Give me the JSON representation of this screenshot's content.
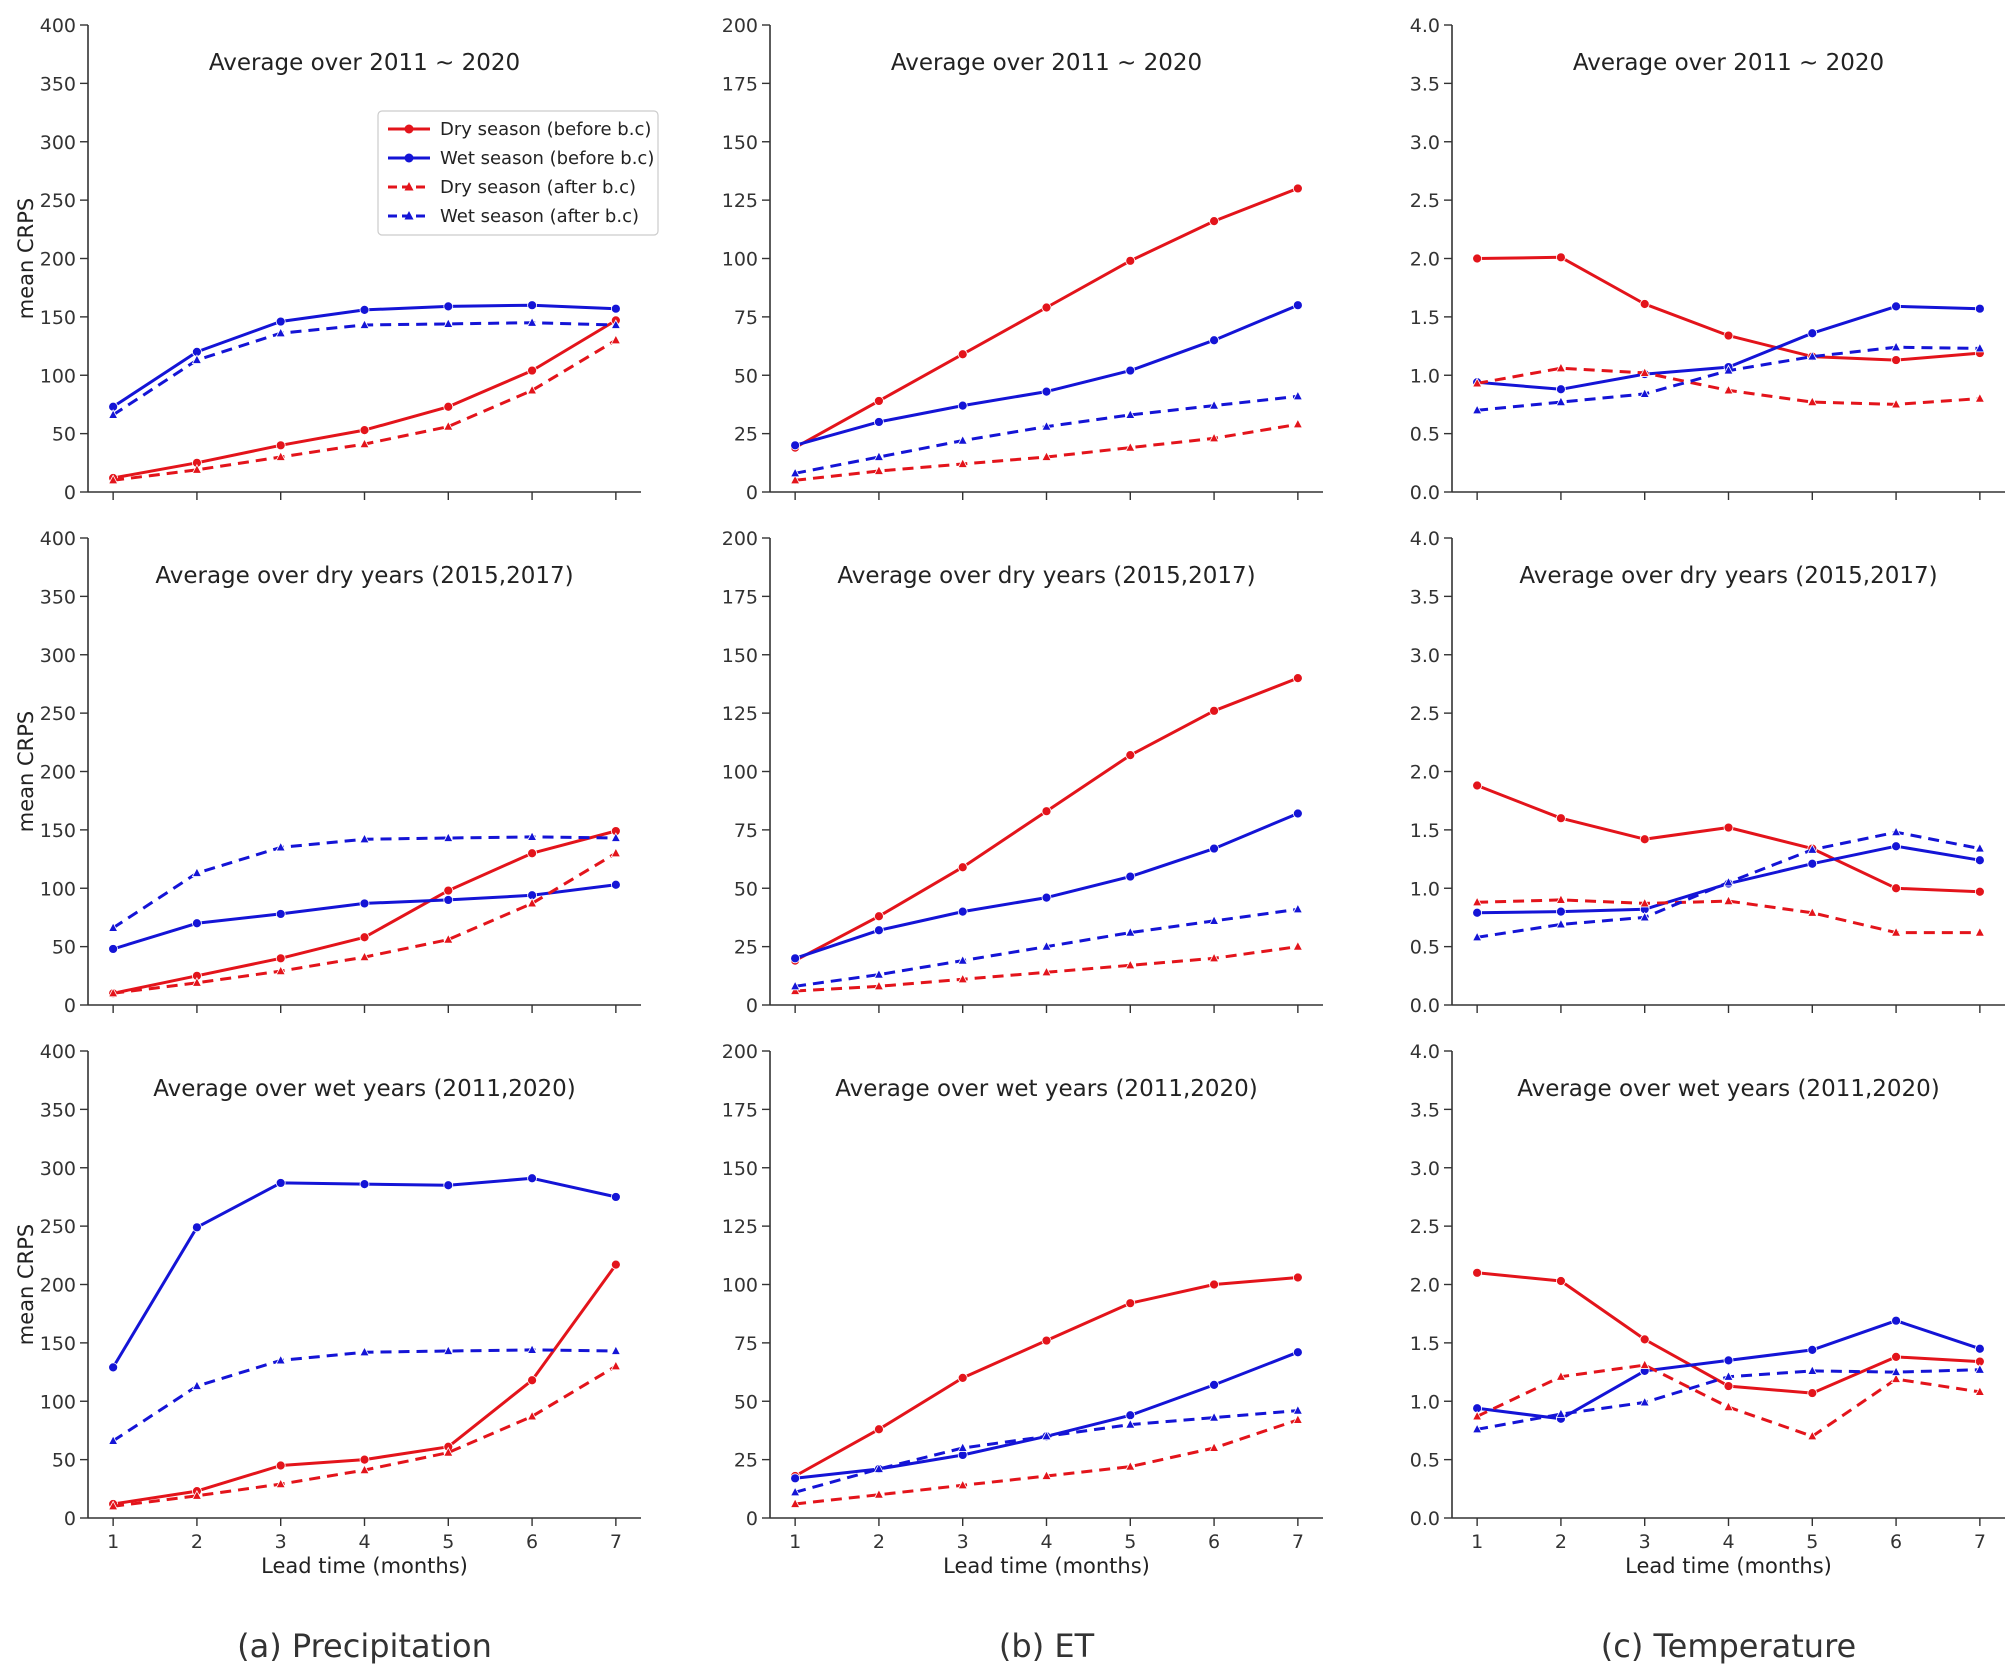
{
  "chart_data": [
    {
      "type": "line",
      "position": "row1-col1",
      "title": "Average over 2011 ~ 2020",
      "ylabel": "mean CRPS",
      "xlabel": "",
      "ylim": [
        0,
        400
      ],
      "yticks": [
        0,
        50,
        100,
        150,
        200,
        250,
        300,
        350,
        400
      ],
      "x": [
        1,
        2,
        3,
        4,
        5,
        6,
        7
      ],
      "series": [
        {
          "name": "Dry season (before b.c)",
          "values": [
            12,
            25,
            40,
            53,
            73,
            104,
            147
          ]
        },
        {
          "name": "Wet season (before b.c)",
          "values": [
            73,
            120,
            146,
            156,
            159,
            160,
            157
          ]
        },
        {
          "name": "Dry season (after b.c)",
          "values": [
            10,
            19,
            30,
            41,
            56,
            87,
            130
          ]
        },
        {
          "name": "Wet season (after b.c)",
          "values": [
            66,
            113,
            136,
            143,
            144,
            145,
            143
          ]
        }
      ],
      "legend": {
        "placement": "upper-right",
        "entries": [
          "Dry season (before b.c)",
          "Wet season (before b.c)",
          "Dry season (after b.c)",
          "Wet season (after b.c)"
        ]
      }
    },
    {
      "type": "line",
      "position": "row1-col2",
      "title": "Average over 2011 ~ 2020",
      "ylabel": "",
      "xlabel": "",
      "ylim": [
        0,
        200
      ],
      "yticks": [
        0,
        25,
        50,
        75,
        100,
        125,
        150,
        175,
        200
      ],
      "x": [
        1,
        2,
        3,
        4,
        5,
        6,
        7
      ],
      "series": [
        {
          "values": [
            19,
            39,
            59,
            79,
            99,
            116,
            130
          ]
        },
        {
          "values": [
            20,
            30,
            37,
            43,
            52,
            65,
            80
          ]
        },
        {
          "values": [
            5,
            9,
            12,
            15,
            19,
            23,
            29
          ]
        },
        {
          "values": [
            8,
            15,
            22,
            28,
            33,
            37,
            41
          ]
        }
      ]
    },
    {
      "type": "line",
      "position": "row1-col3",
      "title": "Average over 2011 ~ 2020",
      "ylabel": "",
      "xlabel": "",
      "ylim": [
        0,
        4
      ],
      "yticks": [
        "0.0",
        "0.5",
        "1.0",
        "1.5",
        "2.0",
        "2.5",
        "3.0",
        "3.5",
        "4.0"
      ],
      "x": [
        1,
        2,
        3,
        4,
        5,
        6,
        7
      ],
      "series": [
        {
          "values": [
            2.0,
            2.01,
            1.61,
            1.34,
            1.16,
            1.13,
            1.19
          ]
        },
        {
          "values": [
            0.94,
            0.88,
            1.01,
            1.07,
            1.36,
            1.59,
            1.57
          ]
        },
        {
          "values": [
            0.93,
            1.06,
            1.02,
            0.87,
            0.77,
            0.75,
            0.8
          ]
        },
        {
          "values": [
            0.7,
            0.77,
            0.84,
            1.04,
            1.16,
            1.24,
            1.23
          ]
        }
      ]
    },
    {
      "type": "line",
      "position": "row2-col1",
      "title": "Average over dry years (2015,2017)",
      "ylabel": "mean CRPS",
      "xlabel": "",
      "ylim": [
        0,
        400
      ],
      "yticks": [
        0,
        50,
        100,
        150,
        200,
        250,
        300,
        350,
        400
      ],
      "x": [
        1,
        2,
        3,
        4,
        5,
        6,
        7
      ],
      "series": [
        {
          "values": [
            10,
            25,
            40,
            58,
            98,
            130,
            149
          ]
        },
        {
          "values": [
            48,
            70,
            78,
            87,
            90,
            94,
            103
          ]
        },
        {
          "values": [
            10,
            19,
            29,
            41,
            56,
            87,
            130
          ]
        },
        {
          "values": [
            66,
            113,
            135,
            142,
            143,
            144,
            143
          ]
        }
      ]
    },
    {
      "type": "line",
      "position": "row2-col2",
      "title": "Average over dry years (2015,2017)",
      "ylabel": "",
      "xlabel": "",
      "ylim": [
        0,
        200
      ],
      "yticks": [
        0,
        25,
        50,
        75,
        100,
        125,
        150,
        175,
        200
      ],
      "x": [
        1,
        2,
        3,
        4,
        5,
        6,
        7
      ],
      "series": [
        {
          "values": [
            19,
            38,
            59,
            83,
            107,
            126,
            140
          ]
        },
        {
          "values": [
            20,
            32,
            40,
            46,
            55,
            67,
            82
          ]
        },
        {
          "values": [
            6,
            8,
            11,
            14,
            17,
            20,
            25
          ]
        },
        {
          "values": [
            8,
            13,
            19,
            25,
            31,
            36,
            41
          ]
        }
      ]
    },
    {
      "type": "line",
      "position": "row2-col3",
      "title": "Average over dry years (2015,2017)",
      "ylabel": "",
      "xlabel": "",
      "ylim": [
        0,
        4
      ],
      "yticks": [
        "0.0",
        "0.5",
        "1.0",
        "1.5",
        "2.0",
        "2.5",
        "3.0",
        "3.5",
        "4.0"
      ],
      "x": [
        1,
        2,
        3,
        4,
        5,
        6,
        7
      ],
      "series": [
        {
          "values": [
            1.88,
            1.6,
            1.42,
            1.52,
            1.34,
            1.0,
            0.97
          ]
        },
        {
          "values": [
            0.79,
            0.8,
            0.82,
            1.04,
            1.21,
            1.36,
            1.24
          ]
        },
        {
          "values": [
            0.88,
            0.9,
            0.87,
            0.89,
            0.79,
            0.62,
            0.62
          ]
        },
        {
          "values": [
            0.58,
            0.69,
            0.75,
            1.05,
            1.33,
            1.48,
            1.34
          ]
        }
      ]
    },
    {
      "type": "line",
      "position": "row3-col1",
      "title": "Average over wet years (2011,2020)",
      "ylabel": "mean CRPS",
      "xlabel": "Lead time (months)",
      "ylim": [
        0,
        400
      ],
      "yticks": [
        0,
        50,
        100,
        150,
        200,
        250,
        300,
        350,
        400
      ],
      "x": [
        1,
        2,
        3,
        4,
        5,
        6,
        7
      ],
      "series": [
        {
          "values": [
            12,
            23,
            45,
            50,
            61,
            118,
            217
          ]
        },
        {
          "values": [
            129,
            249,
            287,
            286,
            285,
            291,
            275
          ]
        },
        {
          "values": [
            10,
            19,
            29,
            41,
            56,
            87,
            130
          ]
        },
        {
          "values": [
            66,
            113,
            135,
            142,
            143,
            144,
            143
          ]
        }
      ]
    },
    {
      "type": "line",
      "position": "row3-col2",
      "title": "Average over wet years (2011,2020)",
      "ylabel": "",
      "xlabel": "Lead time (months)",
      "ylim": [
        0,
        200
      ],
      "yticks": [
        0,
        25,
        50,
        75,
        100,
        125,
        150,
        175,
        200
      ],
      "x": [
        1,
        2,
        3,
        4,
        5,
        6,
        7
      ],
      "series": [
        {
          "values": [
            18,
            38,
            60,
            76,
            92,
            100,
            103
          ]
        },
        {
          "values": [
            17,
            21,
            27,
            35,
            44,
            57,
            71
          ]
        },
        {
          "values": [
            6,
            10,
            14,
            18,
            22,
            30,
            42
          ]
        },
        {
          "values": [
            11,
            21,
            30,
            35,
            40,
            43,
            46
          ]
        }
      ]
    },
    {
      "type": "line",
      "position": "row3-col3",
      "title": "Average over wet years (2011,2020)",
      "ylabel": "",
      "xlabel": "Lead time (months)",
      "ylim": [
        0,
        4
      ],
      "yticks": [
        "0.0",
        "0.5",
        "1.0",
        "1.5",
        "2.0",
        "2.5",
        "3.0",
        "3.5",
        "4.0"
      ],
      "x": [
        1,
        2,
        3,
        4,
        5,
        6,
        7
      ],
      "series": [
        {
          "values": [
            2.1,
            2.03,
            1.53,
            1.13,
            1.07,
            1.38,
            1.34
          ]
        },
        {
          "values": [
            0.94,
            0.85,
            1.26,
            1.35,
            1.44,
            1.69,
            1.45
          ]
        },
        {
          "values": [
            0.87,
            1.21,
            1.31,
            0.95,
            0.7,
            1.19,
            1.08
          ]
        },
        {
          "values": [
            0.76,
            0.89,
            0.99,
            1.21,
            1.26,
            1.25,
            1.27
          ]
        }
      ]
    }
  ],
  "captions": [
    "(a) Precipitation",
    "(b) ET",
    "(c) Temperature"
  ],
  "colors": {
    "dry": "#e3141b",
    "wet": "#1414d6",
    "axis": "#333333"
  }
}
